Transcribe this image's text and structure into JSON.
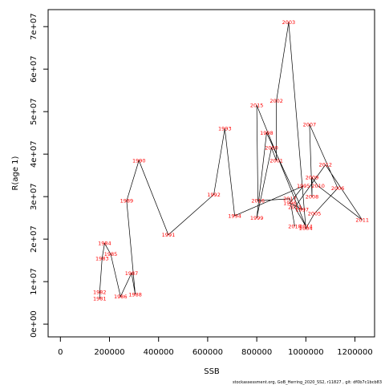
{
  "chart_data": {
    "type": "line",
    "title": "",
    "xlabel": "SSB",
    "ylabel": "R(age 1)",
    "xlim": [
      -50000,
      1280000
    ],
    "ylim": [
      -3000000,
      74000000
    ],
    "x_ticks": [
      {
        "value": 0,
        "label": "0"
      },
      {
        "value": 200000,
        "label": "200000"
      },
      {
        "value": 400000,
        "label": "400000"
      },
      {
        "value": 600000,
        "label": "600000"
      },
      {
        "value": 800000,
        "label": "800000"
      },
      {
        "value": 1000000,
        "label": "1000000"
      },
      {
        "value": 1200000,
        "label": "1200000"
      }
    ],
    "y_ticks": [
      {
        "value": 0,
        "label": "0e+00"
      },
      {
        "value": 10000000,
        "label": "1e+07"
      },
      {
        "value": 20000000,
        "label": "2e+07"
      },
      {
        "value": 30000000,
        "label": "3e+07"
      },
      {
        "value": 40000000,
        "label": "4e+07"
      },
      {
        "value": 50000000,
        "label": "5e+07"
      },
      {
        "value": 60000000,
        "label": "6e+07"
      },
      {
        "value": 70000000,
        "label": "7e+07"
      }
    ],
    "grid": false,
    "legend": "none",
    "line_color": "#000000",
    "label_color": "#ff0000",
    "points": [
      {
        "year": "1981",
        "x": 160000,
        "y": 6000000
      },
      {
        "year": "1982",
        "x": 160000,
        "y": 7500000
      },
      {
        "year": "1983",
        "x": 170000,
        "y": 15500000
      },
      {
        "year": "1984",
        "x": 180000,
        "y": 19000000
      },
      {
        "year": "1985",
        "x": 205000,
        "y": 16500000
      },
      {
        "year": "1986",
        "x": 245000,
        "y": 6500000
      },
      {
        "year": "1987",
        "x": 290000,
        "y": 12000000
      },
      {
        "year": "1988",
        "x": 305000,
        "y": 7000000
      },
      {
        "year": "1989",
        "x": 270000,
        "y": 29000000
      },
      {
        "year": "1990",
        "x": 320000,
        "y": 38500000
      },
      {
        "year": "1991",
        "x": 440000,
        "y": 21000000
      },
      {
        "year": "1992",
        "x": 625000,
        "y": 30500000
      },
      {
        "year": "1993",
        "x": 670000,
        "y": 46000000
      },
      {
        "year": "1994",
        "x": 710000,
        "y": 25500000
      },
      {
        "year": "1995",
        "x": 990000,
        "y": 32500000
      },
      {
        "year": "1996",
        "x": 935000,
        "y": 28500000
      },
      {
        "year": "1997",
        "x": 985000,
        "y": 27000000
      },
      {
        "year": "1998",
        "x": 840000,
        "y": 45000000
      },
      {
        "year": "1999",
        "x": 800000,
        "y": 25000000
      },
      {
        "year": "2000",
        "x": 860000,
        "y": 41500000
      },
      {
        "year": "2001",
        "x": 880000,
        "y": 38500000
      },
      {
        "year": "2002",
        "x": 880000,
        "y": 52500000
      },
      {
        "year": "2003",
        "x": 930000,
        "y": 71000000
      },
      {
        "year": "2004",
        "x": 1000000,
        "y": 22500000
      },
      {
        "year": "2005",
        "x": 1035000,
        "y": 26000000
      },
      {
        "year": "2006",
        "x": 1130000,
        "y": 32000000
      },
      {
        "year": "2007",
        "x": 1015000,
        "y": 47000000
      },
      {
        "year": "2008",
        "x": 1025000,
        "y": 30000000
      },
      {
        "year": "2009",
        "x": 1025000,
        "y": 34500000
      },
      {
        "year": "2010",
        "x": 1050000,
        "y": 32500000
      },
      {
        "year": "2011",
        "x": 1230000,
        "y": 24500000
      },
      {
        "year": "2012",
        "x": 1080000,
        "y": 37500000
      },
      {
        "year": "2013",
        "x": 955000,
        "y": 27500000
      },
      {
        "year": "2014",
        "x": 1000000,
        "y": 23000000
      },
      {
        "year": "2015",
        "x": 800000,
        "y": 51500000
      },
      {
        "year": "2016",
        "x": 805000,
        "y": 29000000
      },
      {
        "year": "2017",
        "x": 935000,
        "y": 29500000
      },
      {
        "year": "2018",
        "x": 955000,
        "y": 23000000
      }
    ]
  },
  "footnote": "stockassessment.org,  GoB_Herring_2020_SS2,  r11827  ,  git:  df0b7c1bcb83"
}
